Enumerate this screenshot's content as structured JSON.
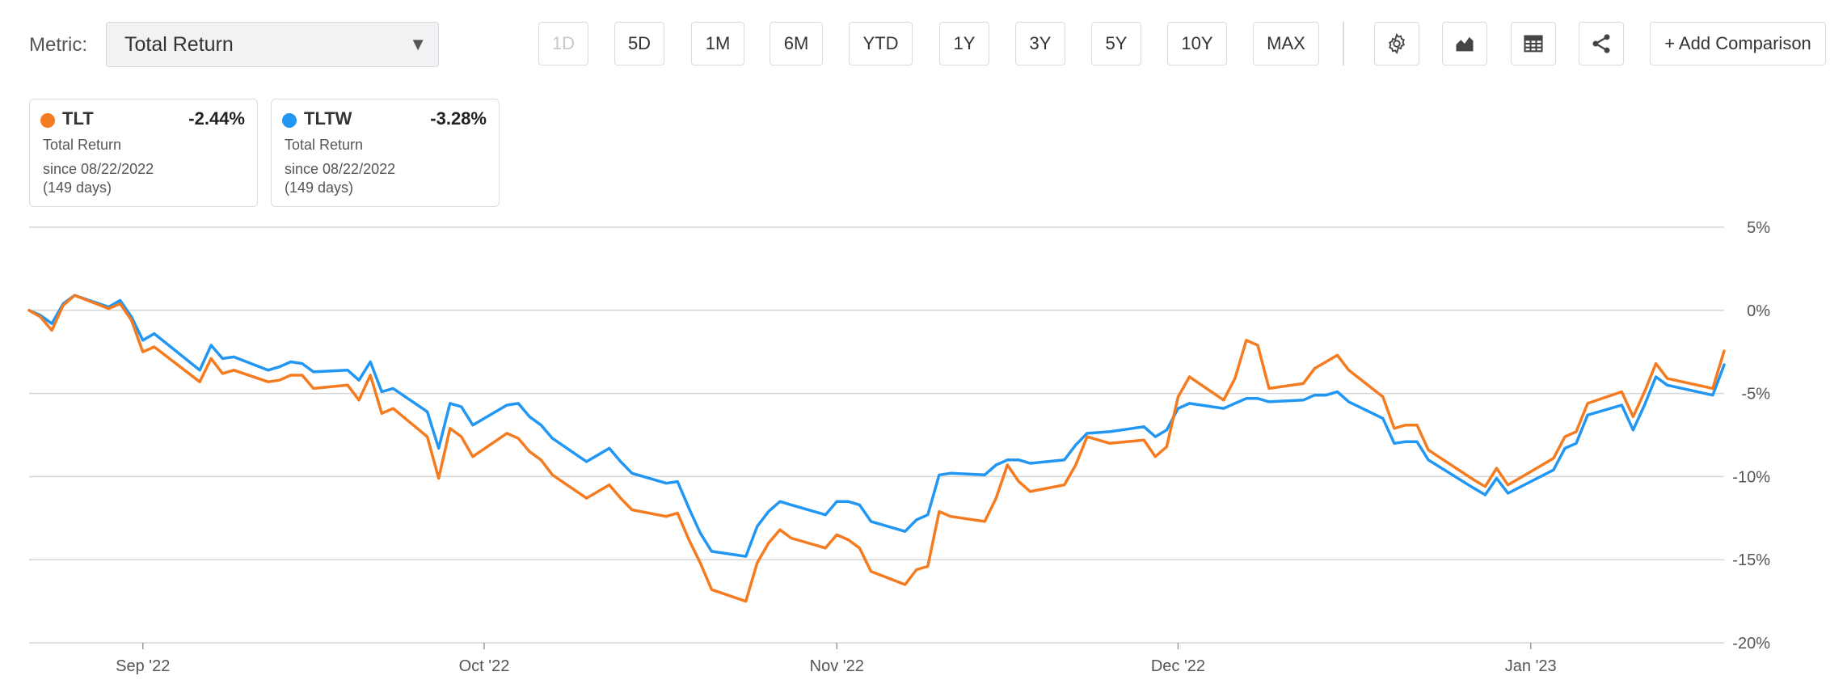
{
  "metric": {
    "label": "Metric:",
    "selected": "Total Return"
  },
  "range_buttons": [
    "1D",
    "5D",
    "1M",
    "6M",
    "YTD",
    "1Y",
    "3Y",
    "5Y",
    "10Y",
    "MAX"
  ],
  "range_disabled": "1D",
  "tools": [
    {
      "name": "settings",
      "icon": "gear-icon"
    },
    {
      "name": "chart-type",
      "icon": "mountain-chart-icon"
    },
    {
      "name": "table",
      "icon": "table-icon"
    },
    {
      "name": "share",
      "icon": "share-icon"
    }
  ],
  "add_comparison": "+ Add Comparison",
  "legend": [
    {
      "ticker": "TLT",
      "return": "-2.44%",
      "metric": "Total Return",
      "since": "since 08/22/2022",
      "days": "(149 days)",
      "color": "#f47b20"
    },
    {
      "ticker": "TLTW",
      "return": "-3.28%",
      "metric": "Total Return",
      "since": "since 08/22/2022",
      "days": "(149 days)",
      "color": "#2196f3"
    }
  ],
  "chart_data": {
    "type": "line",
    "y_tick_labels": [
      "5%",
      "0%",
      "-5%",
      "-10%",
      "-15%",
      "-20%"
    ],
    "y_ticks": [
      5,
      0,
      -5,
      -10,
      -15,
      -20
    ],
    "ylim": [
      -20,
      5
    ],
    "xlim": [
      "2022-08-22",
      "2023-01-18"
    ],
    "x_ticks": [
      {
        "label": "Sep '22",
        "date": "2022-09-01"
      },
      {
        "label": "Oct '22",
        "date": "2022-10-01"
      },
      {
        "label": "Nov '22",
        "date": "2022-11-01"
      },
      {
        "label": "Dec '22",
        "date": "2022-12-01"
      },
      {
        "label": "Jan '23",
        "date": "2023-01-01"
      }
    ],
    "grid": "horizontal",
    "series": [
      {
        "name": "TLT",
        "color": "#f47b20",
        "points": [
          [
            "2022-08-22",
            0
          ],
          [
            "2022-08-23",
            -0.4
          ],
          [
            "2022-08-24",
            -1.2
          ],
          [
            "2022-08-25",
            0.3
          ],
          [
            "2022-08-26",
            0.9
          ],
          [
            "2022-08-29",
            0.1
          ],
          [
            "2022-08-30",
            0.4
          ],
          [
            "2022-08-31",
            -0.6
          ],
          [
            "2022-09-01",
            -2.5
          ],
          [
            "2022-09-02",
            -2.2
          ],
          [
            "2022-09-06",
            -4.3
          ],
          [
            "2022-09-07",
            -2.9
          ],
          [
            "2022-09-08",
            -3.8
          ],
          [
            "2022-09-09",
            -3.6
          ],
          [
            "2022-09-12",
            -4.3
          ],
          [
            "2022-09-13",
            -4.2
          ],
          [
            "2022-09-14",
            -3.9
          ],
          [
            "2022-09-15",
            -3.9
          ],
          [
            "2022-09-16",
            -4.7
          ],
          [
            "2022-09-19",
            -4.5
          ],
          [
            "2022-09-20",
            -5.4
          ],
          [
            "2022-09-21",
            -3.9
          ],
          [
            "2022-09-22",
            -6.2
          ],
          [
            "2022-09-23",
            -5.9
          ],
          [
            "2022-09-26",
            -7.6
          ],
          [
            "2022-09-27",
            -10.1
          ],
          [
            "2022-09-28",
            -7.1
          ],
          [
            "2022-09-29",
            -7.6
          ],
          [
            "2022-09-30",
            -8.8
          ],
          [
            "2022-10-03",
            -7.4
          ],
          [
            "2022-10-04",
            -7.7
          ],
          [
            "2022-10-05",
            -8.5
          ],
          [
            "2022-10-06",
            -9.0
          ],
          [
            "2022-10-07",
            -9.9
          ],
          [
            "2022-10-10",
            -11.3
          ],
          [
            "2022-10-11",
            -10.9
          ],
          [
            "2022-10-12",
            -10.5
          ],
          [
            "2022-10-13",
            -11.3
          ],
          [
            "2022-10-14",
            -12.0
          ],
          [
            "2022-10-17",
            -12.4
          ],
          [
            "2022-10-18",
            -12.2
          ],
          [
            "2022-10-19",
            -13.8
          ],
          [
            "2022-10-20",
            -15.2
          ],
          [
            "2022-10-21",
            -16.8
          ],
          [
            "2022-10-24",
            -17.5
          ],
          [
            "2022-10-25",
            -15.2
          ],
          [
            "2022-10-26",
            -14.0
          ],
          [
            "2022-10-27",
            -13.2
          ],
          [
            "2022-10-28",
            -13.7
          ],
          [
            "2022-10-31",
            -14.3
          ],
          [
            "2022-11-01",
            -13.5
          ],
          [
            "2022-11-02",
            -13.8
          ],
          [
            "2022-11-03",
            -14.3
          ],
          [
            "2022-11-04",
            -15.7
          ],
          [
            "2022-11-07",
            -16.5
          ],
          [
            "2022-11-08",
            -15.6
          ],
          [
            "2022-11-09",
            -15.4
          ],
          [
            "2022-11-10",
            -12.1
          ],
          [
            "2022-11-11",
            -12.4
          ],
          [
            "2022-11-14",
            -12.7
          ],
          [
            "2022-11-15",
            -11.3
          ],
          [
            "2022-11-16",
            -9.3
          ],
          [
            "2022-11-17",
            -10.3
          ],
          [
            "2022-11-18",
            -10.9
          ],
          [
            "2022-11-21",
            -10.5
          ],
          [
            "2022-11-22",
            -9.3
          ],
          [
            "2022-11-23",
            -7.6
          ],
          [
            "2022-11-25",
            -8.0
          ],
          [
            "2022-11-28",
            -7.8
          ],
          [
            "2022-11-29",
            -8.8
          ],
          [
            "2022-11-30",
            -8.2
          ],
          [
            "2022-12-01",
            -5.2
          ],
          [
            "2022-12-02",
            -4.0
          ],
          [
            "2022-12-05",
            -5.4
          ],
          [
            "2022-12-06",
            -4.1
          ],
          [
            "2022-12-07",
            -1.8
          ],
          [
            "2022-12-08",
            -2.1
          ],
          [
            "2022-12-09",
            -4.7
          ],
          [
            "2022-12-12",
            -4.4
          ],
          [
            "2022-12-13",
            -3.5
          ],
          [
            "2022-12-14",
            -3.1
          ],
          [
            "2022-12-15",
            -2.7
          ],
          [
            "2022-12-16",
            -3.6
          ],
          [
            "2022-12-19",
            -5.2
          ],
          [
            "2022-12-20",
            -7.1
          ],
          [
            "2022-12-21",
            -6.9
          ],
          [
            "2022-12-22",
            -6.9
          ],
          [
            "2022-12-23",
            -8.4
          ],
          [
            "2022-12-27",
            -10.2
          ],
          [
            "2022-12-28",
            -10.6
          ],
          [
            "2022-12-29",
            -9.5
          ],
          [
            "2022-12-30",
            -10.5
          ],
          [
            "2023-01-03",
            -8.9
          ],
          [
            "2023-01-04",
            -7.6
          ],
          [
            "2023-01-05",
            -7.3
          ],
          [
            "2023-01-06",
            -5.6
          ],
          [
            "2023-01-09",
            -4.9
          ],
          [
            "2023-01-10",
            -6.4
          ],
          [
            "2023-01-11",
            -4.9
          ],
          [
            "2023-01-12",
            -3.2
          ],
          [
            "2023-01-13",
            -4.1
          ],
          [
            "2023-01-17",
            -4.7
          ],
          [
            "2023-01-18",
            -2.44
          ]
        ]
      },
      {
        "name": "TLTW",
        "color": "#2196f3",
        "points": [
          [
            "2022-08-22",
            0
          ],
          [
            "2022-08-23",
            -0.3
          ],
          [
            "2022-08-24",
            -0.8
          ],
          [
            "2022-08-25",
            0.4
          ],
          [
            "2022-08-26",
            0.9
          ],
          [
            "2022-08-29",
            0.2
          ],
          [
            "2022-08-30",
            0.6
          ],
          [
            "2022-08-31",
            -0.4
          ],
          [
            "2022-09-01",
            -1.8
          ],
          [
            "2022-09-02",
            -1.4
          ],
          [
            "2022-09-06",
            -3.6
          ],
          [
            "2022-09-07",
            -2.1
          ],
          [
            "2022-09-08",
            -2.9
          ],
          [
            "2022-09-09",
            -2.8
          ],
          [
            "2022-09-12",
            -3.6
          ],
          [
            "2022-09-13",
            -3.4
          ],
          [
            "2022-09-14",
            -3.1
          ],
          [
            "2022-09-15",
            -3.2
          ],
          [
            "2022-09-16",
            -3.7
          ],
          [
            "2022-09-19",
            -3.6
          ],
          [
            "2022-09-20",
            -4.2
          ],
          [
            "2022-09-21",
            -3.1
          ],
          [
            "2022-09-22",
            -4.9
          ],
          [
            "2022-09-23",
            -4.7
          ],
          [
            "2022-09-26",
            -6.1
          ],
          [
            "2022-09-27",
            -8.3
          ],
          [
            "2022-09-28",
            -5.6
          ],
          [
            "2022-09-29",
            -5.8
          ],
          [
            "2022-09-30",
            -6.9
          ],
          [
            "2022-10-03",
            -5.7
          ],
          [
            "2022-10-04",
            -5.6
          ],
          [
            "2022-10-05",
            -6.4
          ],
          [
            "2022-10-06",
            -6.9
          ],
          [
            "2022-10-07",
            -7.7
          ],
          [
            "2022-10-10",
            -9.1
          ],
          [
            "2022-10-11",
            -8.7
          ],
          [
            "2022-10-12",
            -8.3
          ],
          [
            "2022-10-13",
            -9.1
          ],
          [
            "2022-10-14",
            -9.8
          ],
          [
            "2022-10-17",
            -10.4
          ],
          [
            "2022-10-18",
            -10.3
          ],
          [
            "2022-10-19",
            -11.9
          ],
          [
            "2022-10-20",
            -13.4
          ],
          [
            "2022-10-21",
            -14.5
          ],
          [
            "2022-10-24",
            -14.8
          ],
          [
            "2022-10-25",
            -13.0
          ],
          [
            "2022-10-26",
            -12.1
          ],
          [
            "2022-10-27",
            -11.5
          ],
          [
            "2022-10-28",
            -11.7
          ],
          [
            "2022-10-31",
            -12.3
          ],
          [
            "2022-11-01",
            -11.5
          ],
          [
            "2022-11-02",
            -11.5
          ],
          [
            "2022-11-03",
            -11.7
          ],
          [
            "2022-11-04",
            -12.7
          ],
          [
            "2022-11-07",
            -13.3
          ],
          [
            "2022-11-08",
            -12.6
          ],
          [
            "2022-11-09",
            -12.3
          ],
          [
            "2022-11-10",
            -9.9
          ],
          [
            "2022-11-11",
            -9.8
          ],
          [
            "2022-11-14",
            -9.9
          ],
          [
            "2022-11-15",
            -9.3
          ],
          [
            "2022-11-16",
            -9.0
          ],
          [
            "2022-11-17",
            -9.0
          ],
          [
            "2022-11-18",
            -9.2
          ],
          [
            "2022-11-21",
            -9.0
          ],
          [
            "2022-11-22",
            -8.1
          ],
          [
            "2022-11-23",
            -7.4
          ],
          [
            "2022-11-25",
            -7.3
          ],
          [
            "2022-11-28",
            -7.0
          ],
          [
            "2022-11-29",
            -7.6
          ],
          [
            "2022-11-30",
            -7.2
          ],
          [
            "2022-12-01",
            -5.9
          ],
          [
            "2022-12-02",
            -5.6
          ],
          [
            "2022-12-05",
            -5.9
          ],
          [
            "2022-12-06",
            -5.6
          ],
          [
            "2022-12-07",
            -5.3
          ],
          [
            "2022-12-08",
            -5.3
          ],
          [
            "2022-12-09",
            -5.5
          ],
          [
            "2022-12-12",
            -5.4
          ],
          [
            "2022-12-13",
            -5.1
          ],
          [
            "2022-12-14",
            -5.1
          ],
          [
            "2022-12-15",
            -4.9
          ],
          [
            "2022-12-16",
            -5.5
          ],
          [
            "2022-12-19",
            -6.5
          ],
          [
            "2022-12-20",
            -8.0
          ],
          [
            "2022-12-21",
            -7.9
          ],
          [
            "2022-12-22",
            -7.9
          ],
          [
            "2022-12-23",
            -9.0
          ],
          [
            "2022-12-27",
            -10.7
          ],
          [
            "2022-12-28",
            -11.1
          ],
          [
            "2022-12-29",
            -10.1
          ],
          [
            "2022-12-30",
            -11.0
          ],
          [
            "2023-01-03",
            -9.6
          ],
          [
            "2023-01-04",
            -8.3
          ],
          [
            "2023-01-05",
            -8.0
          ],
          [
            "2023-01-06",
            -6.3
          ],
          [
            "2023-01-09",
            -5.7
          ],
          [
            "2023-01-10",
            -7.2
          ],
          [
            "2023-01-11",
            -5.7
          ],
          [
            "2023-01-12",
            -4.0
          ],
          [
            "2023-01-13",
            -4.5
          ],
          [
            "2023-01-17",
            -5.1
          ],
          [
            "2023-01-18",
            -3.28
          ]
        ]
      }
    ]
  }
}
